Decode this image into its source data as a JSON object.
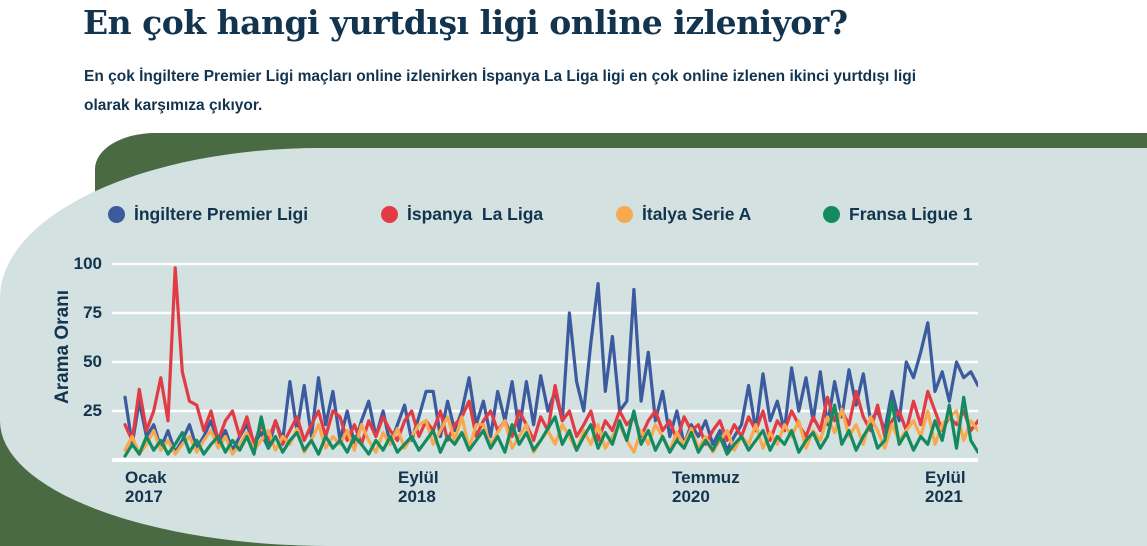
{
  "header": {
    "title": "En çok hangi yurtdışı ligi online izleniyor?",
    "subtitle_line1": "En çok İngiltere Premier Ligi maçları online izlenirken İspanya La Liga ligi en çok online izlenen ikinci yurtdışı ligi",
    "subtitle_line2": "olarak karşımıza çıkıyor."
  },
  "colors": {
    "panel_background": "#d3e1e0",
    "accent_dark_green": "#4a6a44",
    "text_navy": "#12344f",
    "gridline": "#ffffff"
  },
  "chart_data": {
    "type": "line",
    "ylabel": "Arama Oranı",
    "xlabel": "",
    "ylim": [
      0,
      100
    ],
    "y_ticks": [
      100,
      75,
      50,
      25
    ],
    "grid": "horizontal white gridlines on light panel, thicker white baseline at 0",
    "legend_position": "top",
    "x_tick_labels": [
      {
        "month": "Ocak",
        "year": "2017"
      },
      {
        "month": "Eylül",
        "year": "2018"
      },
      {
        "month": "Temmuz",
        "year": "2020"
      },
      {
        "month": "Eylül",
        "year": "2021"
      }
    ],
    "series": [
      {
        "name": "İngiltere Premier Ligi",
        "color": "#3b5b9e",
        "values": [
          32,
          8,
          30,
          12,
          18,
          6,
          15,
          4,
          10,
          18,
          6,
          12,
          20,
          8,
          15,
          5,
          12,
          18,
          8,
          14,
          6,
          20,
          10,
          40,
          15,
          38,
          12,
          42,
          18,
          35,
          10,
          25,
          8,
          20,
          30,
          12,
          25,
          8,
          18,
          28,
          10,
          22,
          35,
          35,
          12,
          30,
          15,
          25,
          42,
          18,
          30,
          12,
          35,
          20,
          40,
          15,
          40,
          18,
          43,
          25,
          35,
          20,
          75,
          40,
          25,
          60,
          90,
          35,
          63,
          25,
          30,
          87,
          30,
          55,
          20,
          35,
          12,
          25,
          8,
          18,
          12,
          20,
          8,
          15,
          5,
          12,
          18,
          38,
          15,
          44,
          20,
          30,
          15,
          47,
          25,
          42,
          20,
          45,
          18,
          40,
          22,
          46,
          28,
          44,
          20,
          25,
          15,
          35,
          20,
          50,
          42,
          55,
          70,
          35,
          45,
          30,
          50,
          42,
          45,
          38
        ]
      },
      {
        "name": "İspanya  La Liga",
        "color": "#e23b45",
        "values": [
          18,
          10,
          36,
          15,
          25,
          42,
          20,
          98,
          45,
          30,
          28,
          15,
          25,
          10,
          20,
          25,
          12,
          22,
          8,
          18,
          10,
          20,
          8,
          15,
          22,
          10,
          18,
          25,
          12,
          25,
          22,
          10,
          18,
          8,
          20,
          12,
          22,
          15,
          10,
          20,
          25,
          12,
          20,
          15,
          25,
          10,
          18,
          22,
          30,
          12,
          20,
          25,
          15,
          20,
          12,
          25,
          18,
          10,
          22,
          15,
          38,
          20,
          25,
          12,
          18,
          25,
          10,
          20,
          15,
          25,
          18,
          22,
          12,
          20,
          25,
          15,
          20,
          10,
          22,
          15,
          18,
          8,
          15,
          20,
          10,
          18,
          12,
          22,
          15,
          25,
          10,
          20,
          15,
          25,
          18,
          12,
          22,
          15,
          32,
          20,
          25,
          18,
          35,
          22,
          15,
          28,
          12,
          20,
          25,
          15,
          30,
          18,
          35,
          25,
          15,
          22,
          18,
          25,
          15,
          20
        ]
      },
      {
        "name": "İtalya Serie A",
        "color": "#f9a94d",
        "values": [
          5,
          12,
          3,
          8,
          15,
          5,
          10,
          3,
          8,
          12,
          4,
          10,
          15,
          6,
          12,
          3,
          8,
          14,
          5,
          10,
          15,
          5,
          12,
          8,
          16,
          4,
          10,
          18,
          6,
          12,
          8,
          15,
          5,
          18,
          10,
          4,
          14,
          8,
          16,
          6,
          12,
          18,
          20,
          8,
          15,
          22,
          10,
          22,
          6,
          18,
          18,
          8,
          14,
          20,
          6,
          12,
          18,
          4,
          10,
          15,
          8,
          18,
          12,
          5,
          15,
          8,
          18,
          6,
          12,
          18,
          10,
          4,
          15,
          8,
          18,
          12,
          5,
          14,
          8,
          16,
          6,
          12,
          4,
          10,
          15,
          5,
          12,
          8,
          18,
          6,
          14,
          8,
          18,
          12,
          20,
          6,
          15,
          10,
          22,
          14,
          26,
          12,
          18,
          8,
          22,
          15,
          6,
          18,
          10,
          15,
          20,
          12,
          25,
          8,
          18,
          22,
          25,
          10,
          20,
          15
        ]
      },
      {
        "name": "Fransa Ligue 1",
        "color": "#148a60",
        "values": [
          2,
          8,
          3,
          12,
          5,
          10,
          3,
          8,
          14,
          4,
          10,
          3,
          8,
          12,
          4,
          10,
          5,
          12,
          3,
          22,
          6,
          12,
          4,
          10,
          14,
          5,
          10,
          3,
          12,
          6,
          10,
          4,
          12,
          8,
          3,
          10,
          5,
          12,
          4,
          8,
          12,
          5,
          10,
          15,
          4,
          12,
          8,
          14,
          5,
          10,
          15,
          6,
          12,
          4,
          18,
          8,
          14,
          5,
          10,
          16,
          22,
          8,
          15,
          5,
          12,
          18,
          6,
          14,
          8,
          20,
          10,
          25,
          8,
          15,
          5,
          12,
          4,
          10,
          6,
          14,
          4,
          10,
          5,
          12,
          3,
          8,
          12,
          5,
          10,
          15,
          5,
          12,
          8,
          15,
          4,
          10,
          14,
          6,
          12,
          28,
          8,
          15,
          5,
          12,
          18,
          6,
          10,
          30,
          8,
          14,
          5,
          12,
          8,
          20,
          10,
          28,
          6,
          32,
          10,
          4
        ]
      }
    ]
  }
}
